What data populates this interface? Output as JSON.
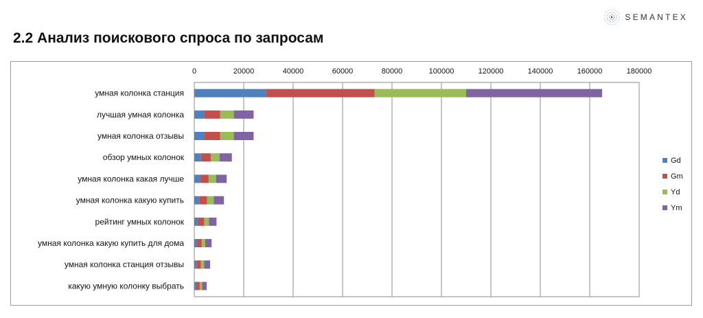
{
  "header": {
    "brand": "SEMANTEX",
    "title": "2.2 Анализ поискового спроса по запросам"
  },
  "chart_data": {
    "type": "bar",
    "orientation": "horizontal",
    "stacked": true,
    "categories": [
      "умная колонка станция",
      "лучшая умная колонка",
      "умная колонка отзывы",
      "обзор умных колонок",
      "умная колонка какая лучше",
      "умная колонка какую купить",
      "рейтинг умных колонок",
      "умная колонка какую купить для дома",
      "умная колонка станция отзывы",
      "какую умную колонку выбрать"
    ],
    "series": [
      {
        "name": "Gd",
        "color": "#4f81bd",
        "values": [
          29000,
          4000,
          4000,
          2700,
          2300,
          2000,
          1500,
          1000,
          900,
          700
        ]
      },
      {
        "name": "Gm",
        "color": "#c0504d",
        "values": [
          44000,
          6500,
          6500,
          4000,
          3500,
          3200,
          2500,
          2000,
          1800,
          1500
        ]
      },
      {
        "name": "Yd",
        "color": "#9bbb59",
        "values": [
          37000,
          5500,
          5500,
          3500,
          3000,
          2700,
          1900,
          1400,
          1300,
          1000
        ]
      },
      {
        "name": "Ym",
        "color": "#8064a2",
        "values": [
          55000,
          8000,
          8000,
          5000,
          4300,
          4100,
          3100,
          2600,
          2400,
          1800
        ]
      }
    ],
    "x_ticks": [
      "0",
      "20000",
      "40000",
      "60000",
      "80000",
      "100000",
      "120000",
      "140000",
      "160000",
      "180000"
    ],
    "xlim": [
      0,
      180000
    ],
    "x_axis_position": "top",
    "grid": true,
    "legend_position": "right",
    "title": "",
    "xlabel": "",
    "ylabel": ""
  }
}
